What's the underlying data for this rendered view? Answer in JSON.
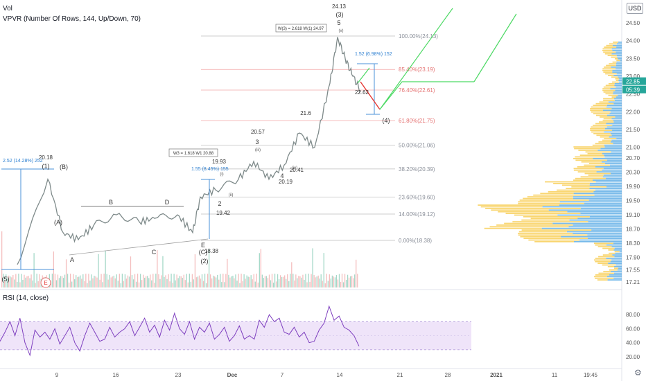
{
  "header": {
    "vol": "Vol",
    "vpvr": "VPVR (Number Of Rows, 144, Up/Down, 70)",
    "rsi": "RSI (14, close)",
    "currency": "USD"
  },
  "price_badges": {
    "last": "22.85",
    "countdown": "05:39"
  },
  "fib_labels": [
    {
      "text": "100.00%(24.13)",
      "price": 24.13
    },
    {
      "text": "85.40%(23.19)",
      "price": 23.19
    },
    {
      "text": "76.40%(22.61)",
      "price": 22.61
    },
    {
      "text": "61.80%(21.75)",
      "price": 21.75
    },
    {
      "text": "50.00%(21.06)",
      "price": 21.06
    },
    {
      "text": "38.20%(20.39)",
      "price": 20.39
    },
    {
      "text": "23.60%(19.60)",
      "price": 19.6
    },
    {
      "text": "14.00%(19.12)",
      "price": 19.12
    },
    {
      "text": "0.00%(18.38)",
      "price": 18.38
    }
  ],
  "annotations": {
    "w3_box": "W3 = 1.618 W1 20.88",
    "w3_wave_box": "W(3) = 2.618 W(1) 24.97",
    "measure_left": "2.52 (14.28%) 252",
    "measure_mid": "1.55 (8.45%) 155",
    "measure_right": "1.52 (6.98%) 152",
    "labels": [
      "(5)",
      "(1)",
      "(B)",
      "(A)",
      "A",
      "B",
      "C",
      "D",
      "E",
      "(C)",
      "(2)",
      "2",
      "3",
      "4",
      "5",
      "(3)",
      "(4)",
      "(i)",
      "(ii)",
      "(iii)",
      "(iv)",
      "(v)"
    ],
    "prices": [
      "20.18",
      "18.38",
      "19.42",
      "19.93",
      "20.57",
      "20.19",
      "21.6",
      "20.41",
      "22.62",
      "24.13"
    ]
  },
  "chart_data": {
    "type": "line",
    "symbol_axis": "USD",
    "x_ticks": [
      "9",
      "16",
      "23",
      "Dec",
      "7",
      "14",
      "21",
      "28",
      "2021",
      "11",
      "19:45"
    ],
    "price_ticks": [
      24.5,
      24.0,
      23.5,
      23.0,
      22.5,
      22.0,
      21.5,
      21.0,
      20.7,
      20.3,
      19.9,
      19.5,
      19.1,
      18.7,
      18.3,
      17.9,
      17.55,
      17.21
    ],
    "ylim": [
      17.21,
      24.8
    ],
    "price_series": {
      "name": "close",
      "x": [
        "Nov 2",
        "Nov 6",
        "Nov 8",
        "Nov 10",
        "Nov 12",
        "Nov 15",
        "Nov 18",
        "Nov 20",
        "Nov 23",
        "Nov 25",
        "Nov 26",
        "Nov 28",
        "Dec 1",
        "Dec 3",
        "Dec 5",
        "Dec 7",
        "Dec 9",
        "Dec 11",
        "Dec 13",
        "Dec 14",
        "Dec 15",
        "Dec 16",
        "Dec 17"
      ],
      "values": [
        17.7,
        20.1,
        18.6,
        18.4,
        18.8,
        19.1,
        18.9,
        19.0,
        19.1,
        18.6,
        19.6,
        19.8,
        20.1,
        20.6,
        20.1,
        20.5,
        21.4,
        21.0,
        22.8,
        24.1,
        23.5,
        23.0,
        22.6
      ]
    },
    "rsi": {
      "name": "RSI (14, close)",
      "ticks": [
        80,
        60,
        40,
        20
      ],
      "ylim": [
        15,
        98
      ],
      "band": [
        30,
        70
      ],
      "values": [
        42,
        55,
        70,
        50,
        75,
        40,
        22,
        58,
        48,
        55,
        45,
        60,
        38,
        50,
        62,
        40,
        28,
        50,
        68,
        55,
        42,
        45,
        62,
        48,
        55,
        60,
        70,
        50,
        62,
        75,
        55,
        65,
        48,
        72,
        58,
        82,
        60,
        52,
        70,
        45,
        62,
        55,
        68,
        45,
        52,
        62,
        42,
        50,
        64,
        45,
        50,
        45,
        72,
        62,
        80,
        70,
        75,
        55,
        52,
        62,
        48,
        55,
        40,
        42,
        58,
        68,
        92,
        72,
        78,
        62,
        58,
        50,
        35
      ]
    },
    "legend": "none",
    "grid": true
  }
}
